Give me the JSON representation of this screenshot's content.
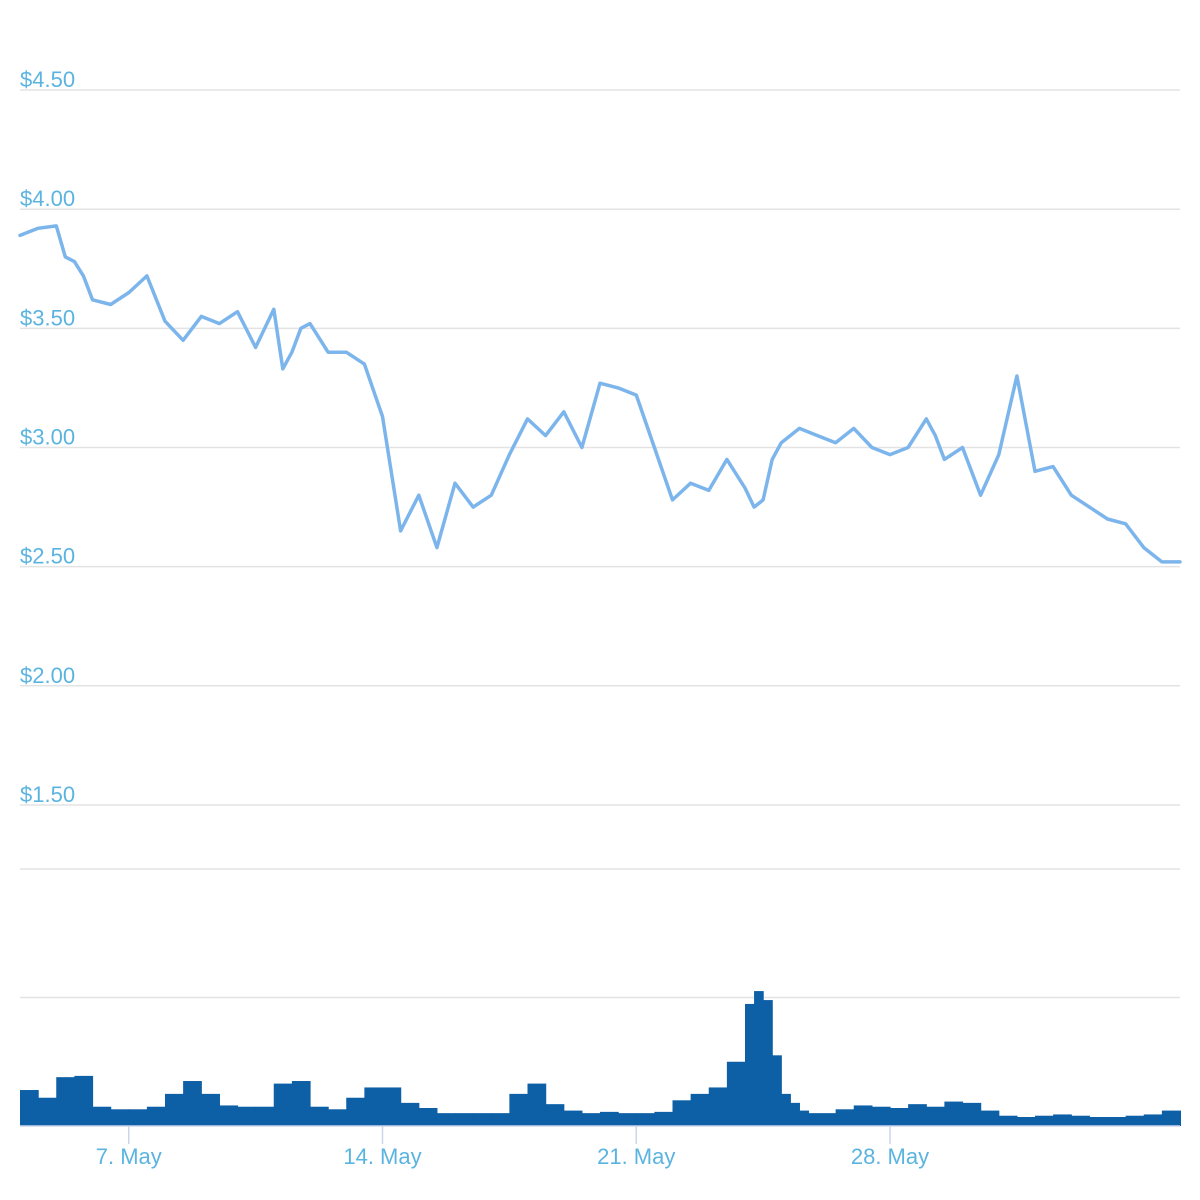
{
  "chart_data": [
    {
      "type": "line",
      "title": "",
      "xlabel": "",
      "ylabel": "",
      "x_range": [
        "2018-05-04",
        "2018-06-05"
      ],
      "ylim": [
        1.29,
        4.71
      ],
      "yticks": [
        1.5,
        2.0,
        2.5,
        3.0,
        3.5,
        4.0,
        4.5
      ],
      "ytick_labels": [
        "$1.50",
        "$2.00",
        "$2.50",
        "$3.00",
        "$3.50",
        "$4.00",
        "$4.50"
      ],
      "grid": true,
      "legend": "none",
      "color": "#7cb5ec",
      "series": [
        {
          "x": [
            "2018-05-04",
            "2018-05-04 12:00",
            "2018-05-05",
            "2018-05-05 06:00",
            "2018-05-05 12:00",
            "2018-05-05 18:00",
            "2018-05-06",
            "2018-05-06 12:00",
            "2018-05-07",
            "2018-05-07 12:00",
            "2018-05-08",
            "2018-05-08 12:00",
            "2018-05-09",
            "2018-05-09 12:00",
            "2018-05-10",
            "2018-05-10 12:00",
            "2018-05-11",
            "2018-05-11 06:00",
            "2018-05-11 12:00",
            "2018-05-11 18:00",
            "2018-05-12",
            "2018-05-12 12:00",
            "2018-05-13",
            "2018-05-13 12:00",
            "2018-05-14",
            "2018-05-14 12:00",
            "2018-05-15",
            "2018-05-15 12:00",
            "2018-05-16",
            "2018-05-16 12:00",
            "2018-05-17",
            "2018-05-17 12:00",
            "2018-05-18",
            "2018-05-18 12:00",
            "2018-05-19",
            "2018-05-19 12:00",
            "2018-05-20",
            "2018-05-20 12:00",
            "2018-05-21",
            "2018-05-21 12:00",
            "2018-05-22",
            "2018-05-22 12:00",
            "2018-05-23",
            "2018-05-23 12:00",
            "2018-05-24",
            "2018-05-24 06:00",
            "2018-05-24 12:00",
            "2018-05-24 18:00",
            "2018-05-25",
            "2018-05-25 12:00",
            "2018-05-26",
            "2018-05-26 12:00",
            "2018-05-27",
            "2018-05-27 12:00",
            "2018-05-28",
            "2018-05-28 12:00",
            "2018-05-29",
            "2018-05-29 06:00",
            "2018-05-29 12:00",
            "2018-05-30",
            "2018-05-30 12:00",
            "2018-05-31",
            "2018-05-31 12:00",
            "2018-06-01",
            "2018-06-01 12:00",
            "2018-06-02",
            "2018-06-02 12:00",
            "2018-06-03",
            "2018-06-03 12:00",
            "2018-06-04",
            "2018-06-04 12:00",
            "2018-06-05"
          ],
          "y": [
            3.89,
            3.92,
            3.93,
            3.8,
            3.78,
            3.72,
            3.62,
            3.6,
            3.65,
            3.72,
            3.53,
            3.45,
            3.55,
            3.52,
            3.57,
            3.42,
            3.58,
            3.33,
            3.4,
            3.5,
            3.52,
            3.4,
            3.4,
            3.35,
            3.13,
            2.65,
            2.8,
            2.58,
            2.85,
            2.75,
            2.8,
            2.97,
            3.12,
            3.05,
            3.15,
            3.0,
            3.27,
            3.25,
            3.22,
            3.0,
            2.78,
            2.85,
            2.82,
            2.95,
            2.83,
            2.75,
            2.78,
            2.95,
            3.02,
            3.08,
            3.05,
            3.02,
            3.08,
            3.0,
            2.97,
            3.0,
            3.12,
            3.05,
            2.95,
            3.0,
            2.8,
            2.97,
            3.3,
            2.9,
            2.92,
            2.8,
            2.75,
            2.7,
            2.68,
            2.58,
            2.52,
            2.52
          ]
        }
      ]
    },
    {
      "type": "bar",
      "title": "",
      "xlabel": "",
      "ylabel": "",
      "x_range": [
        "2018-05-04",
        "2018-06-05"
      ],
      "xtick_labels": [
        "7. May",
        "14. May",
        "21. May",
        "28. May"
      ],
      "xticks": [
        "2018-05-07",
        "2018-05-14",
        "2018-05-21",
        "2018-05-28"
      ],
      "grid": true,
      "legend": "none",
      "color": "#0d5fa6",
      "series": [
        {
          "x": [
            "2018-05-04",
            "2018-05-04 12:00",
            "2018-05-05",
            "2018-05-05 12:00",
            "2018-05-06",
            "2018-05-06 12:00",
            "2018-05-07",
            "2018-05-07 12:00",
            "2018-05-08",
            "2018-05-08 12:00",
            "2018-05-09",
            "2018-05-09 12:00",
            "2018-05-10",
            "2018-05-10 12:00",
            "2018-05-11",
            "2018-05-11 12:00",
            "2018-05-12",
            "2018-05-12 12:00",
            "2018-05-13",
            "2018-05-13 12:00",
            "2018-05-14",
            "2018-05-14 12:00",
            "2018-05-15",
            "2018-05-15 12:00",
            "2018-05-16",
            "2018-05-16 12:00",
            "2018-05-17",
            "2018-05-17 12:00",
            "2018-05-18",
            "2018-05-18 12:00",
            "2018-05-19",
            "2018-05-19 12:00",
            "2018-05-20",
            "2018-05-20 12:00",
            "2018-05-21",
            "2018-05-21 12:00",
            "2018-05-22",
            "2018-05-22 12:00",
            "2018-05-23",
            "2018-05-23 12:00",
            "2018-05-24",
            "2018-05-24 06:00",
            "2018-05-24 12:00",
            "2018-05-24 18:00",
            "2018-05-25",
            "2018-05-25 06:00",
            "2018-05-25 12:00",
            "2018-05-25 18:00",
            "2018-05-26",
            "2018-05-26 12:00",
            "2018-05-27",
            "2018-05-27 12:00",
            "2018-05-28",
            "2018-05-28 12:00",
            "2018-05-29",
            "2018-05-29 12:00",
            "2018-05-30",
            "2018-05-30 12:00",
            "2018-05-31",
            "2018-05-31 12:00",
            "2018-06-01",
            "2018-06-01 12:00",
            "2018-06-02",
            "2018-06-02 12:00",
            "2018-06-03",
            "2018-06-03 12:00",
            "2018-06-04",
            "2018-06-04 12:00",
            "2018-06-05"
          ],
          "y": [
            0.28,
            0.22,
            0.38,
            0.39,
            0.15,
            0.13,
            0.13,
            0.15,
            0.25,
            0.35,
            0.25,
            0.16,
            0.15,
            0.15,
            0.33,
            0.35,
            0.15,
            0.13,
            0.22,
            0.3,
            0.3,
            0.18,
            0.14,
            0.1,
            0.1,
            0.1,
            0.1,
            0.25,
            0.33,
            0.17,
            0.12,
            0.1,
            0.11,
            0.1,
            0.1,
            0.11,
            0.2,
            0.25,
            0.3,
            0.5,
            0.95,
            1.05,
            0.98,
            0.55,
            0.25,
            0.18,
            0.12,
            0.1,
            0.1,
            0.13,
            0.16,
            0.15,
            0.14,
            0.17,
            0.15,
            0.19,
            0.18,
            0.12,
            0.08,
            0.07,
            0.08,
            0.09,
            0.08,
            0.07,
            0.07,
            0.08,
            0.09,
            0.12,
            0.12
          ]
        }
      ]
    }
  ]
}
